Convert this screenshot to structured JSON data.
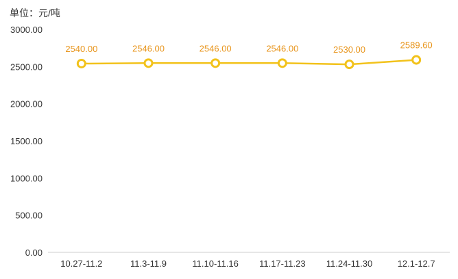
{
  "chart_data": {
    "type": "line",
    "unit_label": "单位：元/吨",
    "categories": [
      "10.27-11.2",
      "11.3-11.9",
      "11.10-11.16",
      "11.17-11.23",
      "11.24-11.30",
      "12.1-12.7"
    ],
    "series": [
      {
        "values": [
          2540.0,
          2546.0,
          2546.0,
          2546.0,
          2530.0,
          2589.6
        ]
      }
    ],
    "data_labels": [
      "2540.00",
      "2546.00",
      "2546.00",
      "2546.00",
      "2530.00",
      "2589.60"
    ],
    "y_ticks": [
      "0.00",
      "500.00",
      "1000.00",
      "1500.00",
      "2000.00",
      "2500.00",
      "3000.00"
    ],
    "ylim": [
      0,
      3000
    ],
    "grid": false,
    "legend": "none",
    "colors": {
      "line": "#f2c21b",
      "marker_fill": "#ffffff",
      "data_label": "#e8951c",
      "axis": "#cccccc"
    }
  }
}
